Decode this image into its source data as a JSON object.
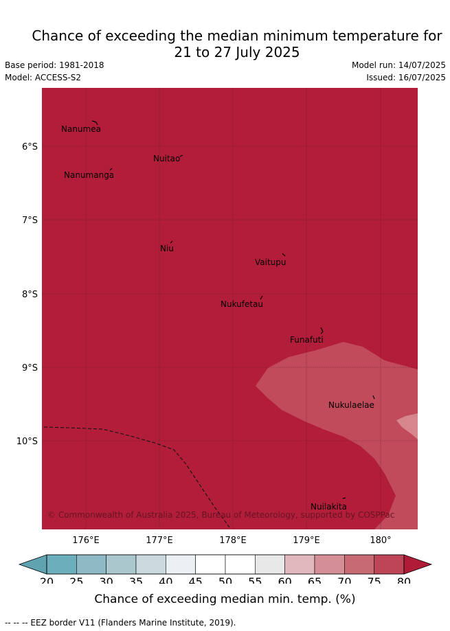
{
  "title_line1": "Chance of exceeding the median minimum temperature for",
  "title_line2": "21 to 27 July 2025",
  "base_period": "Base period: 1981-2018",
  "model": "Model: ACCESS-S2",
  "model_run": "Model run: 14/07/2025",
  "issued": "Issued: 16/07/2025",
  "map": {
    "lat_ticks": [
      "6°S",
      "7°S",
      "8°S",
      "9°S",
      "10°S"
    ],
    "lon_ticks": [
      "176°E",
      "177°E",
      "178°E",
      "179°E",
      "180°"
    ],
    "islands": [
      {
        "name": "Nanumea"
      },
      {
        "name": "Nuitao"
      },
      {
        "name": "Nanumanga"
      },
      {
        "name": "Niu"
      },
      {
        "name": "Vaitupu"
      },
      {
        "name": "Nukufetau"
      },
      {
        "name": "Funafuti"
      },
      {
        "name": "Nukulaelae"
      },
      {
        "name": "Nuilakita"
      }
    ],
    "copyright": "© Commonwealth of Australia 2025, Bureau of Meteorology, supported by COSPPac",
    "colors": {
      "main_fill": "#b21e3a",
      "band_75_80": "#c14b5b",
      "band_70_75": "#d7868e"
    }
  },
  "colorbar": {
    "ticks": [
      "20",
      "25",
      "30",
      "35",
      "40",
      "45",
      "50",
      "55",
      "60",
      "65",
      "70",
      "75",
      "80"
    ],
    "colors": [
      "#6daebc",
      "#8ebac5",
      "#a9c7cc",
      "#c9d9dd",
      "#ebf1f3",
      "#ffffff",
      "#ffffff",
      "#e8e8e8",
      "#e0b8be",
      "#d48e96",
      "#c86a74",
      "#bd4557"
    ],
    "under_color": "#5fa3b0",
    "over_color": "#b01c38",
    "label": "Chance of exceeding median min. temp. (%)"
  },
  "footnote": "--  --  -- EEZ border V11 (Flanders Marine Institute, 2019)."
}
